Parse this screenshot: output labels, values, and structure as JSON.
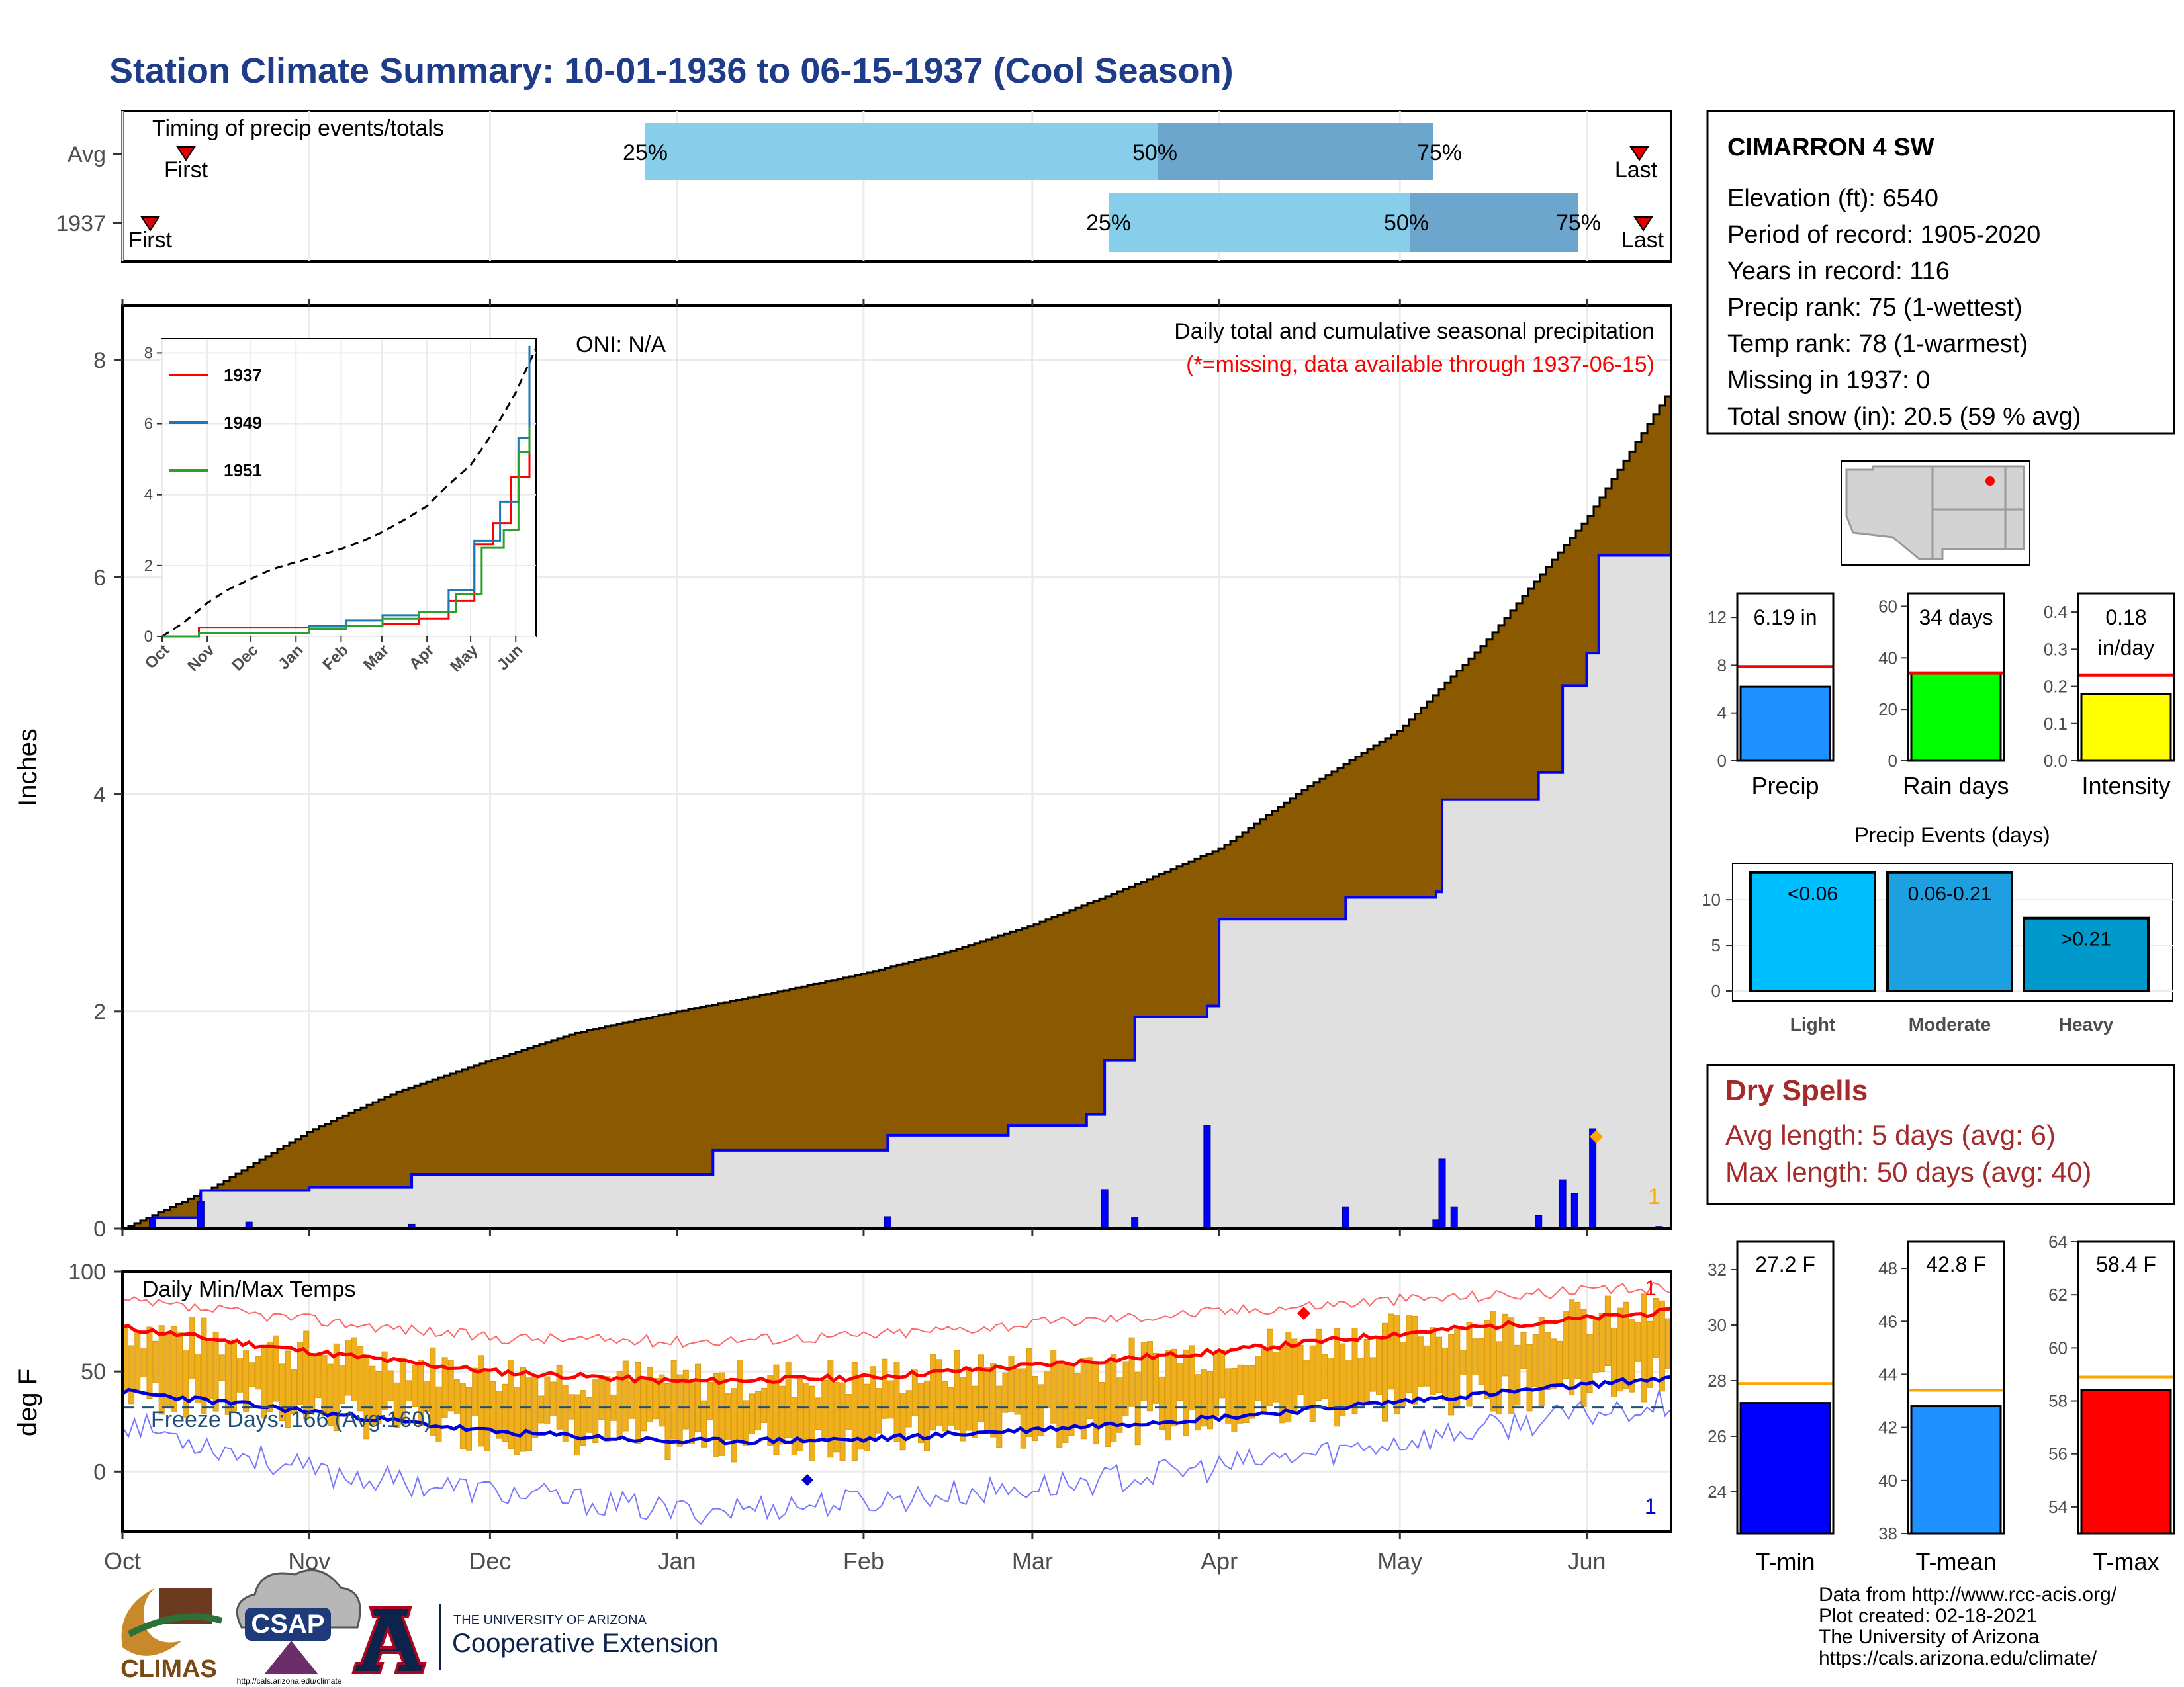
{
  "title": "Station Climate Summary: 10-01-1936 to 06-15-1937 (Cool Season)",
  "timing": {
    "label": "Timing of precip events/totals",
    "rows": [
      {
        "name": "Avg",
        "first_label": "First",
        "last_label": "Last",
        "pct25": "25%",
        "pct50": "50%",
        "pct75": "75%"
      },
      {
        "name": "1937",
        "first_label": "First",
        "last_label": "Last",
        "pct25": "25%",
        "pct50": "50%",
        "pct75": "75%"
      }
    ],
    "colors": {
      "light": "#87ceeb",
      "dark": "#6ca6cd",
      "marker": "#ff0000"
    }
  },
  "precip_panel": {
    "ylabel": "Inches",
    "y_ticks": [
      "0",
      "2",
      "4",
      "6",
      "8"
    ],
    "oni": "ONI: N/A",
    "desc": "Daily total and cumulative seasonal precipitation",
    "missing_note": "(*=missing, data available through 1937-06-15)",
    "rank_label": "1",
    "colors": {
      "avg_fill": "#8b5a00",
      "obs_fill": "#e0e0e0",
      "obs_line": "#0000ff",
      "daily_bar": "#0000ff",
      "max_marker": "#ffa500"
    }
  },
  "inset": {
    "months": [
      "Oct",
      "Nov",
      "Dec",
      "Jan",
      "Feb",
      "Mar",
      "Apr",
      "May",
      "Jun"
    ],
    "y_ticks": [
      "0",
      "2",
      "4",
      "6",
      "8"
    ],
    "legend": [
      {
        "name": "1937",
        "color": "#ff0000"
      },
      {
        "name": "1949",
        "color": "#1f77b4"
      },
      {
        "name": "1951",
        "color": "#2ca02c"
      }
    ]
  },
  "temp_panel": {
    "ylabel": "deg F",
    "title": "Daily Min/Max Temps",
    "y_ticks": [
      "0",
      "50",
      "100"
    ],
    "freeze": "Freeze Days: 166 (Avg:160)",
    "max_rank": "1",
    "min_rank": "1"
  },
  "x_months": [
    "Oct",
    "Nov",
    "Dec",
    "Jan",
    "Feb",
    "Mar",
    "Apr",
    "May",
    "Jun"
  ],
  "station": {
    "name": "CIMARRON 4 SW",
    "lines": [
      "Elevation (ft): 6540",
      "Period of record: 1905-2020",
      "Years in record: 116",
      "Precip rank: 75 (1-wettest)",
      "Temp rank: 78 (1-warmest)",
      "Missing in 1937: 0",
      "Total snow (in): 20.5 (59 % avg)"
    ]
  },
  "mini_bars": [
    {
      "label": "Precip",
      "value_text": "6.19 in",
      "value": 6.19,
      "avg": 7.9,
      "ymax": 14,
      "ticks": [
        "0",
        "4",
        "8",
        "12"
      ],
      "color": "#1e90ff"
    },
    {
      "label": "Rain days",
      "value_text": "34 days",
      "value": 34,
      "avg": 34,
      "ymax": 65,
      "ticks": [
        "0",
        "20",
        "40",
        "60"
      ],
      "color": "#00ff00"
    },
    {
      "label": "Intensity",
      "value_text_1": "0.18",
      "value_text_2": "in/day",
      "value": 0.18,
      "avg": 0.23,
      "ymax": 0.45,
      "ticks": [
        "0.0",
        "0.1",
        "0.2",
        "0.3",
        "0.4"
      ],
      "color": "#ffff00"
    }
  ],
  "events": {
    "title": "Precip Events (days)",
    "bars": [
      {
        "category": "Light",
        "label": "<0.06",
        "value": 13,
        "color": "#00bfff"
      },
      {
        "category": "Moderate",
        "label": "0.06-0.21",
        "value": 13,
        "color": "#1e9fe0"
      },
      {
        "category": "Heavy",
        "label": ">0.21",
        "value": 8,
        "color": "#0099cc"
      }
    ],
    "y_ticks": [
      "0",
      "5",
      "10"
    ]
  },
  "dry_spells": {
    "title": "Dry Spells",
    "avg": "Avg length: 5 days (avg: 6)",
    "max": "Max length: 50 days (avg: 40)"
  },
  "temp_bars": [
    {
      "label": "T-min",
      "value_text": "27.2 F",
      "value": 27.2,
      "avg": 27.9,
      "ymin": 22.5,
      "ymax": 33,
      "ticks": [
        "24",
        "26",
        "28",
        "30",
        "32"
      ],
      "color": "#0000ff"
    },
    {
      "label": "T-mean",
      "value_text": "42.8 F",
      "value": 42.8,
      "avg": 43.4,
      "ymin": 38,
      "ymax": 49,
      "ticks": [
        "38",
        "40",
        "42",
        "44",
        "46",
        "48"
      ],
      "color": "#1e90ff"
    },
    {
      "label": "T-max",
      "value_text": "58.4 F",
      "value": 58.4,
      "avg": 58.9,
      "ymin": 53,
      "ymax": 64,
      "ticks": [
        "54",
        "56",
        "58",
        "60",
        "62",
        "64"
      ],
      "color": "#ff0000"
    }
  ],
  "footer": {
    "lines": [
      "Data from http://www.rcc-acis.org/",
      "Plot created: 02-18-2021",
      "The University of Arizona",
      "https://cals.arizona.edu/climate/"
    ],
    "logo_climas": "CLIMAS",
    "logo_csap": "CSAP",
    "logo_csap_url": "http://cals.arizona.edu/climate",
    "ua_top": "THE UNIVERSITY OF ARIZONA",
    "ua_bottom": "Cooperative Extension"
  },
  "chart_data": {
    "type": "area",
    "title": "Daily total and cumulative seasonal precipitation",
    "ylabel": "Inches",
    "ylim": [
      0,
      8.5
    ],
    "x_range": [
      "1936-10-01",
      "1937-06-15"
    ],
    "series": [
      {
        "name": "Average cumulative",
        "points": [
          [
            "1936-10-01",
            0
          ],
          [
            "1936-10-15",
            0.35
          ],
          [
            "1936-11-01",
            0.9
          ],
          [
            "1936-11-15",
            1.25
          ],
          [
            "1936-12-01",
            1.55
          ],
          [
            "1936-12-15",
            1.8
          ],
          [
            "1937-01-01",
            2.0
          ],
          [
            "1937-01-15",
            2.15
          ],
          [
            "1937-02-01",
            2.35
          ],
          [
            "1937-02-15",
            2.55
          ],
          [
            "1937-03-01",
            2.8
          ],
          [
            "1937-03-15",
            3.1
          ],
          [
            "1937-04-01",
            3.5
          ],
          [
            "1937-04-15",
            4.05
          ],
          [
            "1937-05-01",
            4.6
          ],
          [
            "1937-05-15",
            5.4
          ],
          [
            "1937-06-01",
            6.55
          ],
          [
            "1937-06-15",
            7.75
          ]
        ]
      },
      {
        "name": "1937 cumulative",
        "points": [
          [
            "1936-10-01",
            0
          ],
          [
            "1936-10-06",
            0.1
          ],
          [
            "1936-10-14",
            0.1
          ],
          [
            "1936-10-14",
            0.35
          ],
          [
            "1936-11-01",
            0.38
          ],
          [
            "1936-11-18",
            0.5
          ],
          [
            "1937-01-07",
            0.62
          ],
          [
            "1937-01-07",
            0.72
          ],
          [
            "1937-02-05",
            0.75
          ],
          [
            "1937-02-05",
            0.86
          ],
          [
            "1937-02-25",
            0.95
          ],
          [
            "1937-03-10",
            1.05
          ],
          [
            "1937-03-13",
            1.55
          ],
          [
            "1937-03-18",
            1.95
          ],
          [
            "1937-03-30",
            2.05
          ],
          [
            "1937-04-01",
            2.85
          ],
          [
            "1937-04-22",
            3.05
          ],
          [
            "1937-05-07",
            3.1
          ],
          [
            "1937-05-08",
            3.95
          ],
          [
            "1937-05-24",
            4.2
          ],
          [
            "1937-05-28",
            5.0
          ],
          [
            "1937-06-01",
            5.3
          ],
          [
            "1937-06-03",
            6.2
          ],
          [
            "1937-06-15",
            6.2
          ]
        ]
      }
    ],
    "daily_precip": [
      [
        "1936-10-06",
        0.1
      ],
      [
        "1936-10-14",
        0.25
      ],
      [
        "1936-10-22",
        0.06
      ],
      [
        "1936-11-18",
        0.04
      ],
      [
        "1937-02-05",
        0.11
      ],
      [
        "1937-03-13",
        0.36
      ],
      [
        "1937-03-18",
        0.1
      ],
      [
        "1937-03-30",
        0.95
      ],
      [
        "1937-04-22",
        0.2
      ],
      [
        "1937-05-07",
        0.08
      ],
      [
        "1937-05-08",
        0.64
      ],
      [
        "1937-05-10",
        0.2
      ],
      [
        "1937-05-24",
        0.12
      ],
      [
        "1937-05-28",
        0.45
      ],
      [
        "1937-05-30",
        0.32
      ],
      [
        "1937-06-02",
        0.92
      ],
      [
        "1937-06-13",
        0.02
      ]
    ],
    "temperature": {
      "ylim": [
        -30,
        100
      ],
      "avg_max": [
        [
          "1936-10-01",
          72
        ],
        [
          "1936-11-01",
          60
        ],
        [
          "1936-12-01",
          50
        ],
        [
          "1937-01-01",
          45
        ],
        [
          "1937-02-01",
          47
        ],
        [
          "1937-03-01",
          53
        ],
        [
          "1937-04-01",
          60
        ],
        [
          "1937-05-01",
          69
        ],
        [
          "1937-06-15",
          80
        ]
      ],
      "avg_min": [
        [
          "1936-10-01",
          40
        ],
        [
          "1936-11-01",
          30
        ],
        [
          "1936-12-01",
          20
        ],
        [
          "1937-01-01",
          15
        ],
        [
          "1937-02-01",
          16
        ],
        [
          "1937-03-01",
          21
        ],
        [
          "1937-04-01",
          27
        ],
        [
          "1937-05-01",
          35
        ],
        [
          "1937-06-15",
          47
        ]
      ],
      "record_max": [
        [
          "1936-10-01",
          85
        ],
        [
          "1936-11-01",
          76
        ],
        [
          "1936-12-01",
          67
        ],
        [
          "1937-01-01",
          65
        ],
        [
          "1937-02-01",
          68
        ],
        [
          "1937-03-01",
          74
        ],
        [
          "1937-04-01",
          80
        ],
        [
          "1937-05-01",
          86
        ],
        [
          "1937-06-15",
          92
        ]
      ],
      "record_min": [
        [
          "1936-10-01",
          25
        ],
        [
          "1936-11-01",
          0
        ],
        [
          "1936-12-01",
          -10
        ],
        [
          "1937-01-01",
          -20
        ],
        [
          "1937-02-01",
          -15
        ],
        [
          "1937-03-01",
          -8
        ],
        [
          "1937-04-01",
          2
        ],
        [
          "1937-05-01",
          15
        ],
        [
          "1937-06-15",
          35
        ]
      ],
      "freeze_line": 32
    }
  }
}
